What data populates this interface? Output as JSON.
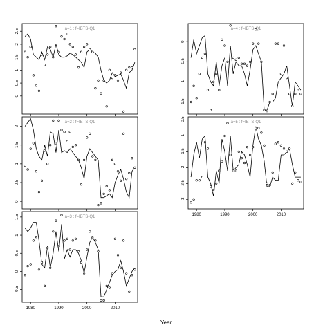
{
  "figure": {
    "xlabel": "Year"
  },
  "chart_data": [
    {
      "type": "line",
      "title": "a=1 : f=IBTS-Q1",
      "xlim": [
        1977,
        2018
      ],
      "ylim": [
        -0.7,
        2.8
      ],
      "xticks": [
        1980,
        1990,
        2000,
        2010
      ],
      "yticks": [
        0.0,
        0.5,
        1.0,
        1.5,
        2.0,
        2.5
      ],
      "series": [
        {
          "style": "line",
          "x": [
            1978,
            1979,
            1980,
            1981,
            1982,
            1983,
            1984,
            1985,
            1986,
            1987,
            1988,
            1989,
            1990,
            1991,
            1992,
            1993,
            1994,
            1995,
            1996,
            1997,
            1998,
            1999,
            2000,
            2001,
            2002,
            2003,
            2004,
            2005,
            2006,
            2007,
            2008,
            2009,
            2010,
            2011,
            2012,
            2013,
            2014,
            2015,
            2016,
            2017
          ],
          "y": [
            2.3,
            2.4,
            2.2,
            1.6,
            1.5,
            1.4,
            1.7,
            1.4,
            1.9,
            1.8,
            1.5,
            2.0,
            1.6,
            1.5,
            1.5,
            1.55,
            1.65,
            1.6,
            1.5,
            1.4,
            1.3,
            1.1,
            1.7,
            1.8,
            1.7,
            1.65,
            1.5,
            1.0,
            0.6,
            0.5,
            0.6,
            0.9,
            0.75,
            0.8,
            0.85,
            0.6,
            0.3,
            0.9,
            1.0,
            1.3
          ]
        },
        {
          "style": "points",
          "x": [
            1978,
            1979,
            1980,
            1981,
            1982,
            1983,
            1984,
            1985,
            1986,
            1987,
            1988,
            1989,
            1990,
            1991,
            1992,
            1993,
            1994,
            1995,
            1996,
            1997,
            1998,
            1999,
            2000,
            2001,
            2002,
            2003,
            2004,
            2005,
            2006,
            2007,
            2008,
            2009,
            2010,
            2011,
            2012,
            2013,
            2014,
            2015,
            2016,
            2017
          ],
          "y": [
            1.7,
            1.5,
            1.9,
            0.8,
            0.4,
            0.2,
            1.6,
            1.2,
            1.6,
            1.9,
            1.5,
            2.7,
            1.7,
            2.3,
            2.2,
            2.4,
            2.0,
            1.9,
            1.6,
            1.1,
            1.7,
            1.9,
            2.0,
            1.8,
            1.7,
            0.3,
            0.6,
            0.1,
            0.6,
            -0.4,
            1.0,
            0.7,
            0.8,
            0.6,
            0.9,
            -0.6,
            1.0,
            1.1,
            1.1,
            1.8
          ]
        }
      ]
    },
    {
      "type": "line",
      "title": "a=2 : f=IBTS-Q1",
      "xlim": [
        1977,
        2018
      ],
      "ylim": [
        -0.2,
        2.25
      ],
      "xticks": [
        1980,
        1990,
        2000,
        2010
      ],
      "yticks": [
        0.0,
        0.5,
        1.0,
        1.5,
        2.0
      ],
      "series": [
        {
          "style": "line",
          "x": [
            1978,
            1979,
            1980,
            1981,
            1982,
            1983,
            1984,
            1985,
            1986,
            1987,
            1988,
            1989,
            1990,
            1991,
            1992,
            1993,
            1994,
            1995,
            1996,
            1997,
            1998,
            1999,
            2000,
            2001,
            2002,
            2003,
            2004,
            2005,
            2006,
            2007,
            2008,
            2009,
            2010,
            2011,
            2012,
            2013,
            2014,
            2015,
            2016,
            2017
          ],
          "y": [
            2.0,
            2.1,
            2.2,
            1.9,
            1.4,
            1.2,
            1.1,
            1.5,
            1.2,
            1.85,
            1.8,
            1.3,
            1.9,
            1.3,
            1.35,
            1.3,
            1.4,
            1.3,
            1.2,
            1.1,
            0.9,
            0.6,
            1.2,
            1.4,
            1.3,
            1.2,
            1.1,
            0.1,
            0.1,
            0.15,
            0.2,
            0.1,
            0.5,
            0.7,
            0.85,
            0.6,
            0.25,
            0.1,
            0.8,
            0.9
          ]
        },
        {
          "style": "points",
          "x": [
            1978,
            1979,
            1980,
            1981,
            1982,
            1983,
            1984,
            1985,
            1986,
            1987,
            1988,
            1989,
            1990,
            1991,
            1992,
            1993,
            1994,
            1995,
            1996,
            1997,
            1998,
            1999,
            2000,
            2001,
            2002,
            2003,
            2004,
            2005,
            2006,
            2007,
            2008,
            2009,
            2010,
            2011,
            2012,
            2013,
            2014,
            2015,
            2016,
            2017
          ],
          "y": [
            0.95,
            0.85,
            1.4,
            1.55,
            0.8,
            0.25,
            0.55,
            1.35,
            1.0,
            1.5,
            2.15,
            1.55,
            2.15,
            1.9,
            1.85,
            1.6,
            1.85,
            1.45,
            1.5,
            1.1,
            0.45,
            1.1,
            1.7,
            1.8,
            1.2,
            1.1,
            -0.1,
            -0.05,
            0.2,
            0.4,
            0.3,
            1.1,
            1.0,
            0.8,
            0.55,
            1.8,
            0.6,
            0.75,
            1.15,
            0.9
          ]
        }
      ]
    },
    {
      "type": "line",
      "title": "a=3 : f=IBTS-Q1",
      "xlim": [
        1977,
        2018
      ],
      "ylim": [
        -0.85,
        1.65
      ],
      "xticks": [
        1980,
        1990,
        2000,
        2010
      ],
      "xticklabels": [
        "1980",
        "1990",
        "2000",
        "2010"
      ],
      "yticks": [
        -0.5,
        0.0,
        0.5,
        1.0,
        1.5
      ],
      "series": [
        {
          "style": "line",
          "x": [
            1978,
            1979,
            1980,
            1981,
            1982,
            1983,
            1984,
            1985,
            1986,
            1987,
            1988,
            1989,
            1990,
            1991,
            1992,
            1993,
            1994,
            1995,
            1996,
            1997,
            1998,
            1999,
            2000,
            2001,
            2002,
            2003,
            2004,
            2005,
            2006,
            2007,
            2008,
            2009,
            2010,
            2011,
            2012,
            2013,
            2014,
            2015,
            2016,
            2017
          ],
          "y": [
            1.2,
            1.1,
            1.2,
            1.35,
            1.35,
            0.85,
            0.2,
            0.1,
            0.7,
            0.1,
            0.5,
            1.1,
            0.55,
            1.3,
            0.35,
            0.6,
            0.4,
            0.6,
            0.6,
            0.5,
            0.3,
            -0.05,
            0.4,
            0.8,
            0.95,
            0.8,
            0.6,
            -0.7,
            -0.7,
            -0.5,
            -0.3,
            -0.1,
            0.0,
            0.05,
            0.3,
            0.0,
            -0.4,
            -0.2,
            0.0,
            0.1
          ]
        },
        {
          "style": "points",
          "x": [
            1978,
            1979,
            1980,
            1981,
            1982,
            1983,
            1984,
            1985,
            1986,
            1987,
            1988,
            1989,
            1990,
            1991,
            1992,
            1993,
            1994,
            1995,
            1996,
            1997,
            1998,
            1999,
            2000,
            2001,
            2002,
            2003,
            2004,
            2005,
            2006,
            2007,
            2008,
            2009,
            2010,
            2011,
            2012,
            2013,
            2014,
            2015,
            2016,
            2017
          ],
          "y": [
            -0.1,
            0.15,
            0.2,
            0.85,
            0.95,
            0.05,
            0.25,
            -0.4,
            0.65,
            0.1,
            1.1,
            1.4,
            0.7,
            1.55,
            0.85,
            0.9,
            0.6,
            0.85,
            0.9,
            0.55,
            0.25,
            -0.05,
            0.6,
            1.1,
            0.95,
            0.85,
            0.55,
            -0.8,
            -0.8,
            -0.4,
            -0.45,
            -0.05,
            0.9,
            0.45,
            0.1,
            0.85,
            -0.05,
            -0.55,
            -0.1,
            0.05
          ]
        }
      ]
    },
    {
      "type": "line",
      "title": "a=4 : f=IBTS-Q1",
      "xlim": [
        1977,
        2018
      ],
      "ylim": [
        -1.8,
        0.45
      ],
      "xticks": [
        1980,
        1990,
        2000,
        2010
      ],
      "yticks": [
        -1.5,
        -1.0,
        -0.5,
        0.0
      ],
      "series": [
        {
          "style": "line",
          "x": [
            1978,
            1979,
            1980,
            1981,
            1982,
            1983,
            1984,
            1985,
            1986,
            1987,
            1988,
            1989,
            1990,
            1991,
            1992,
            1993,
            1994,
            1995,
            1996,
            1997,
            1998,
            1999,
            2000,
            2001,
            2002,
            2003,
            2004,
            2005,
            2006,
            2007,
            2008,
            2009,
            2010,
            2011,
            2012,
            2013,
            2014,
            2015,
            2016,
            2017
          ],
          "y": [
            -0.4,
            0.05,
            -0.3,
            -0.1,
            0.1,
            0.15,
            -0.8,
            -1.0,
            -1.1,
            -0.5,
            -1.1,
            -0.6,
            -0.4,
            -1.1,
            -0.1,
            -0.8,
            -0.5,
            -0.6,
            -0.6,
            -0.8,
            -1.1,
            -0.7,
            -0.2,
            -0.1,
            -0.3,
            -0.5,
            -1.7,
            -1.7,
            -1.5,
            -1.5,
            -1.4,
            -1.0,
            -0.9,
            -0.8,
            -0.6,
            -1.1,
            -1.6,
            -1.0,
            -1.1,
            -1.2
          ]
        },
        {
          "style": "points",
          "x": [
            1978,
            1979,
            1980,
            1981,
            1982,
            1983,
            1984,
            1985,
            1986,
            1987,
            1988,
            1989,
            1990,
            1991,
            1992,
            1993,
            1994,
            1995,
            1996,
            1997,
            1998,
            1999,
            2000,
            2001,
            2002,
            2003,
            2004,
            2005,
            2006,
            2007,
            2008,
            2009,
            2010,
            2011,
            2012,
            2013,
            2014,
            2015,
            2016,
            2017
          ],
          "y": [
            -1.5,
            -1.1,
            -1.4,
            -0.8,
            -0.4,
            -0.3,
            -1.2,
            -1.7,
            -1.0,
            -0.8,
            -1.2,
            0.05,
            -0.1,
            -0.5,
            0.4,
            -0.4,
            -0.45,
            -0.4,
            -0.55,
            -0.55,
            -0.6,
            -0.5,
            -0.05,
            0.3,
            -0.05,
            -0.5,
            -1.7,
            -1.75,
            -1.5,
            -1.3,
            -0.05,
            -0.05,
            -0.8,
            -0.1,
            -0.9,
            -1.3,
            -1.6,
            -1.3,
            -1.2,
            -1.3
          ]
        }
      ]
    },
    {
      "type": "line",
      "title": "a=5 : f=IBTS-Q1",
      "xlim": [
        1977,
        2018
      ],
      "ylim": [
        -3.3,
        -0.4
      ],
      "xticks": [
        1980,
        1990,
        2000,
        2010
      ],
      "xticklabels": [
        "1980",
        "1990",
        "2000",
        "2010"
      ],
      "yticks": [
        -3.0,
        -2.5,
        -2.0,
        -1.5,
        -1.0,
        -0.5
      ],
      "series": [
        {
          "style": "line",
          "x": [
            1978,
            1979,
            1980,
            1981,
            1982,
            1983,
            1984,
            1985,
            1986,
            1987,
            1988,
            1989,
            1990,
            1991,
            1992,
            1993,
            1994,
            1995,
            1996,
            1997,
            1998,
            1999,
            2000,
            2001,
            2002,
            2003,
            2004,
            2005,
            2006,
            2007,
            2008,
            2009,
            2010,
            2011,
            2012,
            2013,
            2014,
            2015,
            2016,
            2017
          ],
          "y": [
            -2.3,
            -1.6,
            -1.2,
            -1.7,
            -1.1,
            -1.0,
            -2.3,
            -2.5,
            -2.9,
            -2.1,
            -2.5,
            -1.1,
            -1.5,
            -2.1,
            -1.0,
            -2.1,
            -2.0,
            -1.9,
            -1.5,
            -1.6,
            -1.9,
            -2.3,
            -1.3,
            -0.7,
            -1.1,
            -1.3,
            -1.8,
            -2.6,
            -2.6,
            -2.3,
            -2.4,
            -2.4,
            -1.6,
            -1.6,
            -1.5,
            -1.4,
            -1.9,
            -2.3,
            -2.3,
            -2.3
          ]
        },
        {
          "style": "points",
          "x": [
            1978,
            1979,
            1980,
            1981,
            1982,
            1983,
            1984,
            1985,
            1986,
            1987,
            1988,
            1989,
            1990,
            1991,
            1992,
            1993,
            1994,
            1995,
            1996,
            1997,
            1998,
            1999,
            2000,
            2001,
            2002,
            2003,
            2004,
            2005,
            2006,
            2007,
            2008,
            2009,
            2010,
            2011,
            2012,
            2013,
            2014,
            2015,
            2016,
            2017
          ],
          "y": [
            -3.1,
            -3.0,
            -2.4,
            -2.4,
            -2.3,
            -1.2,
            -1.4,
            -2.6,
            -2.7,
            -2.5,
            -2.1,
            -1.8,
            -1.0,
            -0.6,
            -1.6,
            -2.1,
            -2.1,
            -1.5,
            -1.7,
            -1.85,
            -1.35,
            -1.6,
            -1.35,
            -0.75,
            -0.75,
            -0.9,
            -1.3,
            -2.5,
            -2.55,
            -2.15,
            -1.25,
            -1.2,
            -1.3,
            -1.4,
            -1.5,
            -1.4,
            -2.5,
            -2.15,
            -2.4,
            -2.45
          ]
        }
      ]
    }
  ]
}
